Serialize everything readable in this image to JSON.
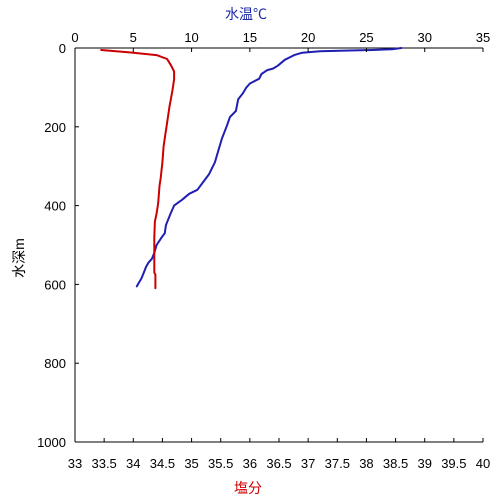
{
  "chart_data": {
    "type": "line",
    "xlabel_top": "水温℃",
    "xlabel_bottom": "塩分",
    "ylabel": "水深m",
    "top_axis": {
      "label": "水温℃",
      "range": [
        0,
        35
      ],
      "ticks": [
        "0",
        "5",
        "10",
        "15",
        "20",
        "25",
        "30",
        "35"
      ],
      "tick_values": [
        0,
        5,
        10,
        15,
        20,
        25,
        30,
        35
      ],
      "color": "#1f2aa8"
    },
    "bottom_axis": {
      "label": "塩分",
      "range": [
        33,
        40
      ],
      "ticks": [
        "33",
        "33.5",
        "34",
        "34.5",
        "35",
        "35.5",
        "36",
        "36.5",
        "37",
        "37.5",
        "38",
        "38.5",
        "39",
        "39.5",
        "40"
      ],
      "tick_values": [
        33,
        33.5,
        34,
        34.5,
        35,
        35.5,
        36,
        36.5,
        37,
        37.5,
        38,
        38.5,
        39,
        39.5,
        40
      ],
      "color": "#cc0000"
    },
    "left_axis": {
      "label": "水深m",
      "range": [
        0,
        1000
      ],
      "inverted": true,
      "ticks": [
        "0",
        "200",
        "400",
        "600",
        "800",
        "1000"
      ],
      "tick_values": [
        0,
        200,
        400,
        600,
        800,
        1000
      ]
    },
    "grid": false,
    "series": [
      {
        "axis": "top",
        "color": "#1f1fb4",
        "points": [
          [
            28.0,
            0
          ],
          [
            27.2,
            3
          ],
          [
            25.5,
            5
          ],
          [
            24.0,
            6
          ],
          [
            21.0,
            8
          ],
          [
            19.5,
            12
          ],
          [
            18.8,
            18
          ],
          [
            18.0,
            30
          ],
          [
            17.4,
            45
          ],
          [
            17.0,
            52
          ],
          [
            16.5,
            56
          ],
          [
            16.0,
            66
          ],
          [
            15.8,
            78
          ],
          [
            15.0,
            90
          ],
          [
            14.7,
            100
          ],
          [
            14.4,
            115
          ],
          [
            14.0,
            130
          ],
          [
            13.8,
            160
          ],
          [
            13.3,
            175
          ],
          [
            13.0,
            200
          ],
          [
            12.6,
            230
          ],
          [
            12.3,
            260
          ],
          [
            12.0,
            290
          ],
          [
            11.5,
            320
          ],
          [
            11.0,
            340
          ],
          [
            10.5,
            360
          ],
          [
            9.8,
            370
          ],
          [
            9.2,
            385
          ],
          [
            8.5,
            400
          ],
          [
            8.2,
            420
          ],
          [
            7.8,
            450
          ],
          [
            7.7,
            470
          ],
          [
            7.4,
            482
          ],
          [
            7.0,
            500
          ],
          [
            6.8,
            520
          ],
          [
            6.6,
            535
          ],
          [
            6.3,
            545
          ],
          [
            6.1,
            555
          ],
          [
            5.9,
            570
          ],
          [
            5.7,
            585
          ],
          [
            5.4,
            600
          ],
          [
            5.3,
            605
          ]
        ]
      },
      {
        "axis": "bottom",
        "color": "#cc0000",
        "points": [
          [
            33.45,
            5
          ],
          [
            34.0,
            12
          ],
          [
            34.4,
            18
          ],
          [
            34.58,
            28
          ],
          [
            34.65,
            45
          ],
          [
            34.7,
            60
          ],
          [
            34.7,
            80
          ],
          [
            34.67,
            110
          ],
          [
            34.62,
            150
          ],
          [
            34.57,
            200
          ],
          [
            34.55,
            220
          ],
          [
            34.52,
            250
          ],
          [
            34.5,
            290
          ],
          [
            34.47,
            330
          ],
          [
            34.45,
            350
          ],
          [
            34.43,
            390
          ],
          [
            34.42,
            400
          ],
          [
            34.4,
            420
          ],
          [
            34.37,
            440
          ],
          [
            34.36,
            480
          ],
          [
            34.36,
            540
          ],
          [
            34.36,
            570
          ],
          [
            34.38,
            575
          ],
          [
            34.38,
            610
          ]
        ]
      }
    ]
  }
}
